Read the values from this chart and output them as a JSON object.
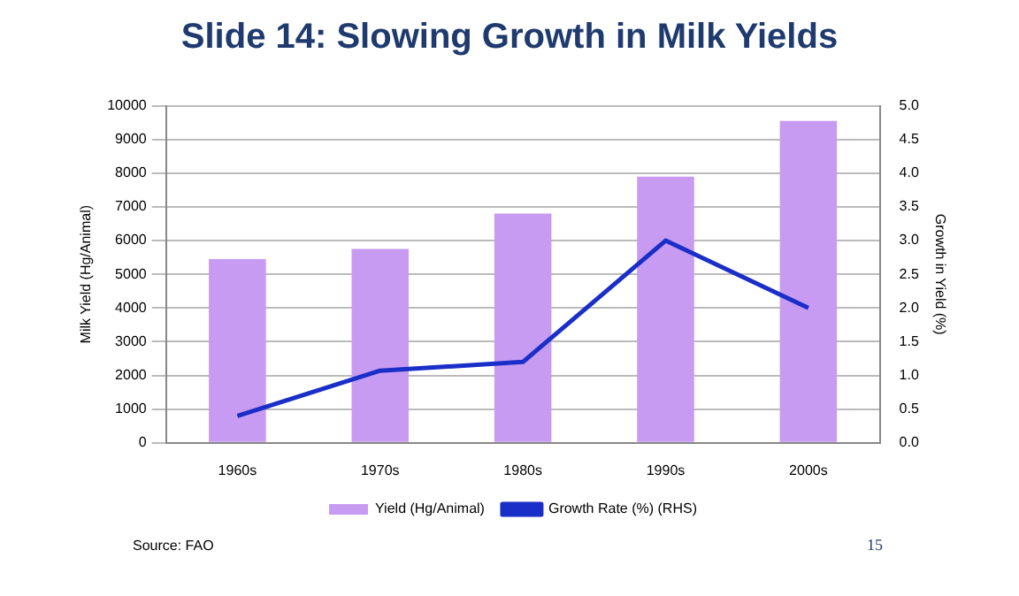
{
  "chart_data": {
    "type": "bar",
    "title": "Slide 14: Slowing Growth in Milk Yields",
    "ylabel": "Milk Yield (Hg/Animal)",
    "y2label": "Growth in Yield (%)",
    "categories": [
      "1960s",
      "1970s",
      "1980s",
      "1990s",
      "2000s"
    ],
    "series": [
      {
        "name": "Yield (Hg/Animal)",
        "color": "#c89bf2",
        "values": [
          5450,
          5750,
          6800,
          7900,
          9550
        ]
      },
      {
        "name": "Growth Rate (%) (RHS)",
        "type": "line",
        "axis": "y2",
        "color": "#1a2ec8",
        "values": [
          0.4,
          1.07,
          1.2,
          3.0,
          2.0
        ]
      }
    ],
    "ylim": [
      0,
      10000
    ],
    "yticks": [
      0,
      1000,
      2000,
      3000,
      4000,
      5000,
      6000,
      7000,
      8000,
      9000,
      10000
    ],
    "y2lim": [
      0,
      5
    ],
    "y2ticks": [
      {
        "value": 0,
        "label": "0.0"
      },
      {
        "value": 0.5,
        "label": "0.5"
      },
      {
        "value": 1,
        "label": "1.0"
      },
      {
        "value": 1.5,
        "label": "1.5"
      },
      {
        "value": 2,
        "label": "2.0"
      },
      {
        "value": 2.5,
        "label": "2.5"
      },
      {
        "value": 3,
        "label": "3.0"
      },
      {
        "value": 3.5,
        "label": "3.5"
      },
      {
        "value": 4,
        "label": "4.0"
      },
      {
        "value": 4.5,
        "label": "4.5"
      },
      {
        "value": 5,
        "label": "5.0"
      }
    ],
    "grid": "y",
    "legend": "bottom",
    "marker": "none",
    "annotations": [
      "Source: FAO",
      "15"
    ]
  }
}
